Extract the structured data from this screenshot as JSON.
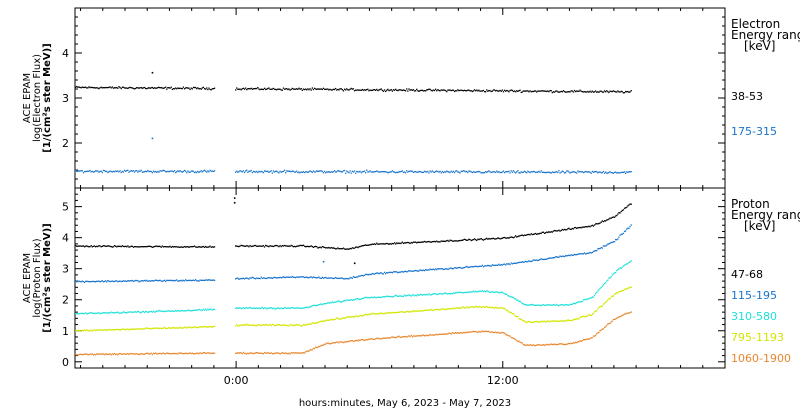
{
  "chart_data": [
    {
      "type": "scatter",
      "panel": "electron",
      "ylabel_lines": [
        "ACE EPAM",
        "log(Electron Flux)",
        "[1/(cm²s ster MeV)]"
      ],
      "legend_title_lines": [
        "Electron",
        "Energy range",
        "[keV]"
      ],
      "ylim": [
        1.0,
        5.0
      ],
      "yticks": [
        2,
        3,
        4
      ],
      "data_gap_hours": [
        -1.0,
        -0.1
      ],
      "series": [
        {
          "name": "38-53",
          "color": "#000000",
          "level": 3.22,
          "trend": -0.004,
          "noise": 0.035,
          "x_start": -8.0,
          "x_end": 17.8
        },
        {
          "name": "175-315",
          "color": "#1874cd",
          "level": 1.38,
          "trend": -0.001,
          "noise": 0.04,
          "x_start": -8.0,
          "x_end": 17.8
        }
      ]
    },
    {
      "type": "scatter",
      "panel": "proton",
      "ylabel_lines": [
        "ACE EPAM",
        "log(Proton Flux)",
        "[1/(cm²s ster MeV)]"
      ],
      "legend_title_lines": [
        "Proton",
        "Energy range",
        "[keV]"
      ],
      "ylim": [
        -0.2,
        5.6
      ],
      "yticks": [
        0,
        1,
        2,
        3,
        4,
        5
      ],
      "data_gap_hours": [
        -1.0,
        -0.1
      ],
      "series": [
        {
          "name": "47-68",
          "color": "#000000",
          "anchors": [
            [
              -8,
              3.75
            ],
            [
              -1,
              3.72
            ],
            [
              0,
              3.75
            ],
            [
              3,
              3.75
            ],
            [
              5,
              3.65
            ],
            [
              6,
              3.8
            ],
            [
              9,
              3.9
            ],
            [
              12,
              4.0
            ],
            [
              14,
              4.2
            ],
            [
              16,
              4.4
            ],
            [
              17,
              4.7
            ],
            [
              17.8,
              5.15
            ]
          ]
        },
        {
          "name": "115-195",
          "color": "#1874cd",
          "anchors": [
            [
              -8,
              2.6
            ],
            [
              -1,
              2.65
            ],
            [
              0,
              2.7
            ],
            [
              3,
              2.75
            ],
            [
              5,
              2.7
            ],
            [
              6,
              2.85
            ],
            [
              9,
              3.0
            ],
            [
              12,
              3.15
            ],
            [
              14,
              3.35
            ],
            [
              16,
              3.55
            ],
            [
              17,
              3.9
            ],
            [
              17.8,
              4.45
            ]
          ]
        },
        {
          "name": "310-580",
          "color": "#1ee0d8",
          "anchors": [
            [
              -8,
              1.55
            ],
            [
              -1,
              1.7
            ],
            [
              0,
              1.75
            ],
            [
              3,
              1.75
            ],
            [
              4,
              1.9
            ],
            [
              6,
              2.1
            ],
            [
              9,
              2.2
            ],
            [
              11,
              2.3
            ],
            [
              12,
              2.25
            ],
            [
              13,
              1.85
            ],
            [
              15,
              1.85
            ],
            [
              16,
              2.1
            ],
            [
              17,
              2.9
            ],
            [
              17.8,
              3.3
            ]
          ]
        },
        {
          "name": "795-1193",
          "color": "#d2e600",
          "anchors": [
            [
              -8,
              1.0
            ],
            [
              -1,
              1.15
            ],
            [
              0,
              1.2
            ],
            [
              3,
              1.2
            ],
            [
              4,
              1.35
            ],
            [
              6,
              1.55
            ],
            [
              9,
              1.7
            ],
            [
              11,
              1.8
            ],
            [
              12,
              1.75
            ],
            [
              13,
              1.3
            ],
            [
              15,
              1.35
            ],
            [
              16,
              1.55
            ],
            [
              17,
              2.2
            ],
            [
              17.8,
              2.45
            ]
          ]
        },
        {
          "name": "1060-1900",
          "color": "#e8872d",
          "anchors": [
            [
              -8,
              0.25
            ],
            [
              -1,
              0.3
            ],
            [
              0,
              0.3
            ],
            [
              3,
              0.3
            ],
            [
              4,
              0.6
            ],
            [
              6,
              0.75
            ],
            [
              9,
              0.9
            ],
            [
              11,
              1.0
            ],
            [
              12,
              0.95
            ],
            [
              13,
              0.55
            ],
            [
              15,
              0.6
            ],
            [
              16,
              0.8
            ],
            [
              17,
              1.4
            ],
            [
              17.8,
              1.65
            ]
          ]
        }
      ]
    }
  ],
  "xaxis": {
    "label": "hours:minutes, May  6, 2023 - May  7, 2023",
    "xlim_hours": [
      -7.25,
      22.0
    ],
    "ticks": [
      {
        "hour": 0,
        "label": "0:00"
      },
      {
        "hour": 12,
        "label": "12:00"
      }
    ],
    "minor_step_hours": 1
  },
  "outliers": [
    {
      "panel": 0,
      "x": -3.8,
      "y": 3.58,
      "color": "#000000"
    },
    {
      "panel": 0,
      "x": -3.8,
      "y": 2.12,
      "color": "#1874cd"
    },
    {
      "panel": 1,
      "x": -0.1,
      "y": 5.3,
      "color": "#000000"
    },
    {
      "panel": 1,
      "x": -0.1,
      "y": 5.15,
      "color": "#000000"
    },
    {
      "panel": 1,
      "x": 5.3,
      "y": 3.2,
      "color": "#000000"
    },
    {
      "panel": 1,
      "x": 3.9,
      "y": 3.25,
      "color": "#1874cd"
    }
  ]
}
